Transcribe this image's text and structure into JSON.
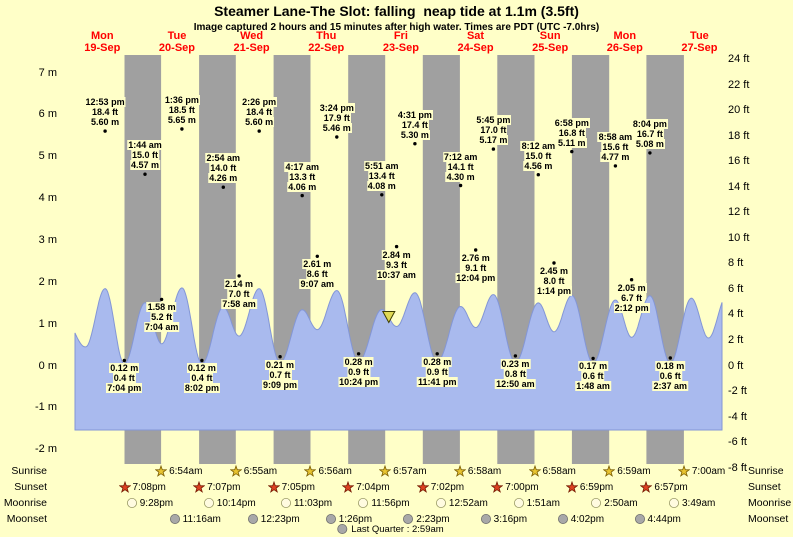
{
  "chart_data": {
    "type": "area",
    "title": "Steamer Lane-The Slot: falling  neap tide at 1.1m (3.5ft)",
    "subtitle": "Image captured 2 hours and 15 minutes after high water. Times are PDT (UTC -7.0hrs)",
    "days": [
      {
        "name": "Mon",
        "date": "19-Sep"
      },
      {
        "name": "Tue",
        "date": "20-Sep"
      },
      {
        "name": "Wed",
        "date": "21-Sep"
      },
      {
        "name": "Thu",
        "date": "22-Sep"
      },
      {
        "name": "Fri",
        "date": "23-Sep"
      },
      {
        "name": "Sat",
        "date": "24-Sep"
      },
      {
        "name": "Sun",
        "date": "25-Sep"
      },
      {
        "name": "Mon",
        "date": "26-Sep"
      },
      {
        "name": "Tue",
        "date": "27-Sep"
      }
    ],
    "y_axis_m": [
      {
        "v": 7,
        "label": "7 m"
      },
      {
        "v": 6,
        "label": "6 m"
      },
      {
        "v": 5,
        "label": "5 m"
      },
      {
        "v": 4,
        "label": "4 m"
      },
      {
        "v": 3,
        "label": "3 m"
      },
      {
        "v": 2,
        "label": "2 m"
      },
      {
        "v": 1,
        "label": "1 m"
      },
      {
        "v": 0,
        "label": "0 m"
      },
      {
        "v": -1,
        "label": "-1 m"
      },
      {
        "v": -2,
        "label": "-2 m"
      }
    ],
    "y_axis_ft": [
      {
        "v": 24,
        "label": "24 ft"
      },
      {
        "v": 22,
        "label": "22 ft"
      },
      {
        "v": 20,
        "label": "20 ft"
      },
      {
        "v": 18,
        "label": "18 ft"
      },
      {
        "v": 16,
        "label": "16 ft"
      },
      {
        "v": 14,
        "label": "14 ft"
      },
      {
        "v": 12,
        "label": "12 ft"
      },
      {
        "v": 10,
        "label": "10 ft"
      },
      {
        "v": 8,
        "label": "8 ft"
      },
      {
        "v": 6,
        "label": "6 ft"
      },
      {
        "v": 4,
        "label": "4 ft"
      },
      {
        "v": 2,
        "label": "2 ft"
      },
      {
        "v": 0,
        "label": "0 ft"
      },
      {
        "v": -2,
        "label": "-2 ft"
      },
      {
        "v": -4,
        "label": "-4 ft"
      },
      {
        "v": -6,
        "label": "-6 ft"
      },
      {
        "v": -8,
        "label": "-8 ft"
      }
    ],
    "tide_events": [
      {
        "day": 0,
        "type": "high",
        "time": "12:53 pm",
        "ft": "18.4 ft",
        "m": "5.60 m",
        "height_m": 5.6
      },
      {
        "day": 0,
        "type": "low",
        "time": "7:04 pm",
        "ft": "0.4 ft",
        "m": "0.12 m",
        "height_m": 0.12
      },
      {
        "day": 1,
        "type": "high",
        "time": "1:44 am",
        "ft": "15.0 ft",
        "m": "4.57 m",
        "height_m": 4.57
      },
      {
        "day": 1,
        "type": "low",
        "time": "7:04 am",
        "ft": "5.2 ft",
        "m": "1.58 m",
        "height_m": 1.58
      },
      {
        "day": 1,
        "type": "high",
        "time": "1:36 pm",
        "ft": "18.5 ft",
        "m": "5.65 m",
        "height_m": 5.65
      },
      {
        "day": 1,
        "type": "low",
        "time": "8:02 pm",
        "ft": "0.4 ft",
        "m": "0.12 m",
        "height_m": 0.12
      },
      {
        "day": 2,
        "type": "high",
        "time": "2:54 am",
        "ft": "14.0 ft",
        "m": "4.26 m",
        "height_m": 4.26
      },
      {
        "day": 2,
        "type": "low",
        "time": "7:58 am",
        "ft": "7.0 ft",
        "m": "2.14 m",
        "height_m": 2.14
      },
      {
        "day": 2,
        "type": "high",
        "time": "2:26 pm",
        "ft": "18.4 ft",
        "m": "5.60 m",
        "height_m": 5.6
      },
      {
        "day": 2,
        "type": "low",
        "time": "9:09 pm",
        "ft": "0.7 ft",
        "m": "0.21 m",
        "height_m": 0.21
      },
      {
        "day": 3,
        "type": "high",
        "time": "4:17 am",
        "ft": "13.3 ft",
        "m": "4.06 m",
        "height_m": 4.06
      },
      {
        "day": 3,
        "type": "low",
        "time": "9:07 am",
        "ft": "8.6 ft",
        "m": "2.61 m",
        "height_m": 2.61
      },
      {
        "day": 3,
        "type": "high",
        "time": "3:24 pm",
        "ft": "17.9 ft",
        "m": "5.46 m",
        "height_m": 5.46
      },
      {
        "day": 3,
        "type": "low",
        "time": "10:24 pm",
        "ft": "0.9 ft",
        "m": "0.28 m",
        "height_m": 0.28
      },
      {
        "day": 4,
        "type": "high",
        "time": "5:51 am",
        "ft": "13.4 ft",
        "m": "4.08 m",
        "height_m": 4.08
      },
      {
        "day": 4,
        "type": "low",
        "time": "10:37 am",
        "ft": "9.3 ft",
        "m": "2.84 m",
        "height_m": 2.84
      },
      {
        "day": 4,
        "type": "high",
        "time": "4:31 pm",
        "ft": "17.4 ft",
        "m": "5.30 m",
        "height_m": 5.3
      },
      {
        "day": 4,
        "type": "low",
        "time": "11:41 pm",
        "ft": "0.9 ft",
        "m": "0.28 m",
        "height_m": 0.28
      },
      {
        "day": 5,
        "type": "high",
        "time": "7:12 am",
        "ft": "14.1 ft",
        "m": "4.30 m",
        "height_m": 4.3
      },
      {
        "day": 5,
        "type": "low",
        "time": "12:04 pm",
        "ft": "9.1 ft",
        "m": "2.76 m",
        "height_m": 2.76
      },
      {
        "day": 5,
        "type": "high",
        "time": "5:45 pm",
        "ft": "17.0 ft",
        "m": "5.17 m",
        "height_m": 5.17
      },
      {
        "day": 6,
        "type": "low",
        "time": "12:50 am",
        "ft": "0.8 ft",
        "m": "0.23 m",
        "height_m": 0.23
      },
      {
        "day": 6,
        "type": "high",
        "time": "8:12 am",
        "ft": "15.0 ft",
        "m": "4.56 m",
        "height_m": 4.56
      },
      {
        "day": 6,
        "type": "low",
        "time": "1:14 pm",
        "ft": "8.0 ft",
        "m": "2.45 m",
        "height_m": 2.45
      },
      {
        "day": 6,
        "type": "high",
        "time": "6:58 pm",
        "ft": "16.8 ft",
        "m": "5.11 m",
        "height_m": 5.11
      },
      {
        "day": 7,
        "type": "low",
        "time": "1:48 am",
        "ft": "0.6 ft",
        "m": "0.17 m",
        "height_m": 0.17
      },
      {
        "day": 7,
        "type": "high",
        "time": "8:58 am",
        "ft": "15.6 ft",
        "m": "4.77 m",
        "height_m": 4.77
      },
      {
        "day": 7,
        "type": "low",
        "time": "2:12 pm",
        "ft": "6.7 ft",
        "m": "2.05 m",
        "height_m": 2.05
      },
      {
        "day": 7,
        "type": "high",
        "time": "8:04 pm",
        "ft": "16.7 ft",
        "m": "5.08 m",
        "height_m": 5.08
      },
      {
        "day": 8,
        "type": "low",
        "time": "2:37 am",
        "ft": "0.6 ft",
        "m": "0.18 m",
        "height_m": 0.18
      }
    ],
    "current_marker": {
      "day": 4,
      "time": "8:06 am",
      "level_m": 1.1
    },
    "sun_moon": {
      "row_labels": [
        "Sunrise",
        "Sunset",
        "Moonrise",
        "Moonset"
      ],
      "sunrise": [
        {
          "day": 1,
          "time": "6:54am"
        },
        {
          "day": 2,
          "time": "6:55am"
        },
        {
          "day": 3,
          "time": "6:56am"
        },
        {
          "day": 4,
          "time": "6:57am"
        },
        {
          "day": 5,
          "time": "6:58am"
        },
        {
          "day": 6,
          "time": "6:58am"
        },
        {
          "day": 7,
          "time": "6:59am"
        },
        {
          "day": 8,
          "time": "7:00am"
        }
      ],
      "sunset": [
        {
          "day": 0,
          "time": "7:08pm"
        },
        {
          "day": 1,
          "time": "7:07pm"
        },
        {
          "day": 2,
          "time": "7:05pm"
        },
        {
          "day": 3,
          "time": "7:04pm"
        },
        {
          "day": 4,
          "time": "7:02pm"
        },
        {
          "day": 5,
          "time": "7:00pm"
        },
        {
          "day": 6,
          "time": "6:59pm"
        },
        {
          "day": 7,
          "time": "6:57pm"
        }
      ],
      "moonrise": [
        {
          "day": 0,
          "time": "9:28pm"
        },
        {
          "day": 1,
          "time": "10:14pm"
        },
        {
          "day": 2,
          "time": "11:03pm"
        },
        {
          "day": 3,
          "time": "11:56pm"
        },
        {
          "day": 5,
          "time": "12:52am"
        },
        {
          "day": 6,
          "time": "1:51am"
        },
        {
          "day": 7,
          "time": "2:50am"
        },
        {
          "day": 8,
          "time": "3:49am"
        }
      ],
      "moonset": [
        {
          "day": 1,
          "time": "11:16am"
        },
        {
          "day": 2,
          "time": "12:23pm"
        },
        {
          "day": 3,
          "time": "1:26pm"
        },
        {
          "day": 4,
          "time": "2:23pm"
        },
        {
          "day": 5,
          "time": "3:16pm"
        },
        {
          "day": 6,
          "time": "4:02pm"
        },
        {
          "day": 7,
          "time": "4:44pm"
        }
      ],
      "moon_phase": "Last Quarter : 2:59am"
    },
    "colors": {
      "page_bg": "#ffffc8",
      "night_band": "#a0a0a0",
      "wave_fill": "#a9baee",
      "wave_edge": "#8396d6",
      "day_label_red": "#ff0000",
      "marker_fill": "#e0d955",
      "sunrise_star": "#e8c430",
      "sunset_star": "#dd4120",
      "moonrise_fill": "#fffbe0",
      "moonset_fill": "#a8a8a8"
    }
  }
}
